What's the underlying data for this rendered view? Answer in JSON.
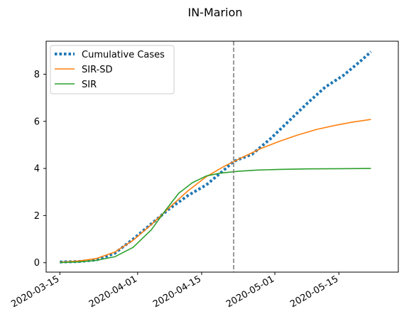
{
  "chart_data": {
    "type": "line",
    "title": "IN-Marion",
    "xlabel": "",
    "ylabel": "",
    "x_axis": {
      "type": "date",
      "range": [
        "2020-03-12",
        "2020-05-28"
      ]
    },
    "ylim": [
      -0.4,
      9.4
    ],
    "x_ticks": [
      "2020-03-15",
      "2020-04-01",
      "2020-04-15",
      "2020-05-01",
      "2020-05-15"
    ],
    "y_ticks": [
      0,
      2,
      4,
      6,
      8
    ],
    "vline": {
      "x": "2020-04-22",
      "style": "dashed",
      "color": "#808080"
    },
    "legend": {
      "position": "top-left",
      "entries": [
        "Cumulative Cases",
        "SIR-SD",
        "SIR"
      ]
    },
    "grid": false,
    "series": [
      {
        "name": "Cumulative Cases",
        "style": "dotted",
        "color": "#1f77b4",
        "x": [
          "2020-03-15",
          "2020-03-19",
          "2020-03-23",
          "2020-03-27",
          "2020-03-31",
          "2020-04-04",
          "2020-04-08",
          "2020-04-12",
          "2020-04-16",
          "2020-04-20",
          "2020-04-22",
          "2020-04-26",
          "2020-04-30",
          "2020-05-04",
          "2020-05-08",
          "2020-05-12",
          "2020-05-16",
          "2020-05-20",
          "2020-05-22"
        ],
        "values": [
          0.03,
          0.05,
          0.12,
          0.4,
          1.0,
          1.65,
          2.3,
          2.85,
          3.3,
          3.95,
          4.3,
          4.6,
          5.25,
          6.0,
          6.75,
          7.45,
          7.95,
          8.6,
          8.95
        ]
      },
      {
        "name": "SIR-SD",
        "style": "solid",
        "color": "#ff7f0e",
        "x": [
          "2020-03-15",
          "2020-03-19",
          "2020-03-23",
          "2020-03-27",
          "2020-03-31",
          "2020-04-04",
          "2020-04-08",
          "2020-04-12",
          "2020-04-16",
          "2020-04-20",
          "2020-04-24",
          "2020-04-28",
          "2020-05-02",
          "2020-05-06",
          "2020-05-10",
          "2020-05-14",
          "2020-05-18",
          "2020-05-22"
        ],
        "values": [
          0.02,
          0.07,
          0.18,
          0.45,
          0.95,
          1.62,
          2.35,
          3.05,
          3.65,
          4.1,
          4.48,
          4.85,
          5.15,
          5.42,
          5.65,
          5.82,
          5.97,
          6.08
        ]
      },
      {
        "name": "SIR",
        "style": "solid",
        "color": "#2ca02c",
        "x": [
          "2020-03-15",
          "2020-03-19",
          "2020-03-23",
          "2020-03-27",
          "2020-03-31",
          "2020-04-04",
          "2020-04-07",
          "2020-04-10",
          "2020-04-13",
          "2020-04-16",
          "2020-04-19",
          "2020-04-23",
          "2020-04-27",
          "2020-05-02",
          "2020-05-08",
          "2020-05-15",
          "2020-05-22"
        ],
        "values": [
          0.01,
          0.03,
          0.1,
          0.25,
          0.65,
          1.4,
          2.2,
          2.95,
          3.4,
          3.68,
          3.8,
          3.88,
          3.93,
          3.96,
          3.98,
          3.99,
          4.0
        ]
      }
    ]
  }
}
